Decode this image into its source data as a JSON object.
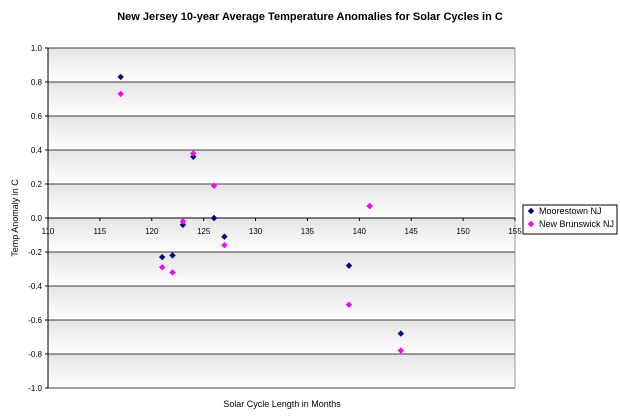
{
  "chart_data": {
    "type": "scatter",
    "title": "New Jersey 10-year Average Temperature Anomalies for Solar Cycles in C",
    "xlabel": "Solar Cycle Length in Months",
    "ylabel": "Temp Anomaly in C",
    "xlim": [
      110,
      155
    ],
    "ylim": [
      -1.0,
      1.0
    ],
    "x_ticks": [
      110,
      115,
      120,
      125,
      130,
      135,
      140,
      145,
      150,
      155
    ],
    "y_ticks": [
      1.0,
      0.8,
      0.6,
      0.4,
      0.2,
      0.0,
      -0.2,
      -0.4,
      -0.6,
      -0.8,
      -1.0
    ],
    "x_tick_labels": [
      "110",
      "115",
      "120",
      "125",
      "130",
      "135",
      "140",
      "145",
      "150",
      "155"
    ],
    "y_tick_labels": [
      "1.0",
      "0.8",
      "0.6",
      "0.4",
      "0.2",
      "0.0",
      "-0.2",
      "-0.4",
      "-0.6",
      "-0.8",
      "-1.0"
    ],
    "grid": true,
    "legend_position": "right",
    "series": [
      {
        "name": "Moorestown NJ",
        "color": "#000080",
        "marker": "diamond",
        "points": [
          {
            "x": 117,
            "y": 0.83
          },
          {
            "x": 121,
            "y": -0.23
          },
          {
            "x": 122,
            "y": -0.22
          },
          {
            "x": 123,
            "y": -0.04
          },
          {
            "x": 124,
            "y": 0.36
          },
          {
            "x": 126,
            "y": 0.0
          },
          {
            "x": 127,
            "y": -0.11
          },
          {
            "x": 139,
            "y": -0.28
          },
          {
            "x": 141,
            "y": 0.07
          },
          {
            "x": 144,
            "y": -0.68
          }
        ]
      },
      {
        "name": "New Brunswick NJ",
        "color": "#ff00ff",
        "marker": "diamond",
        "points": [
          {
            "x": 117,
            "y": 0.73
          },
          {
            "x": 121,
            "y": -0.29
          },
          {
            "x": 122,
            "y": -0.32
          },
          {
            "x": 123,
            "y": -0.02
          },
          {
            "x": 124,
            "y": 0.38
          },
          {
            "x": 126,
            "y": 0.19
          },
          {
            "x": 127,
            "y": -0.16
          },
          {
            "x": 139,
            "y": -0.51
          },
          {
            "x": 141,
            "y": 0.07
          },
          {
            "x": 144,
            "y": -0.78
          }
        ]
      }
    ]
  }
}
